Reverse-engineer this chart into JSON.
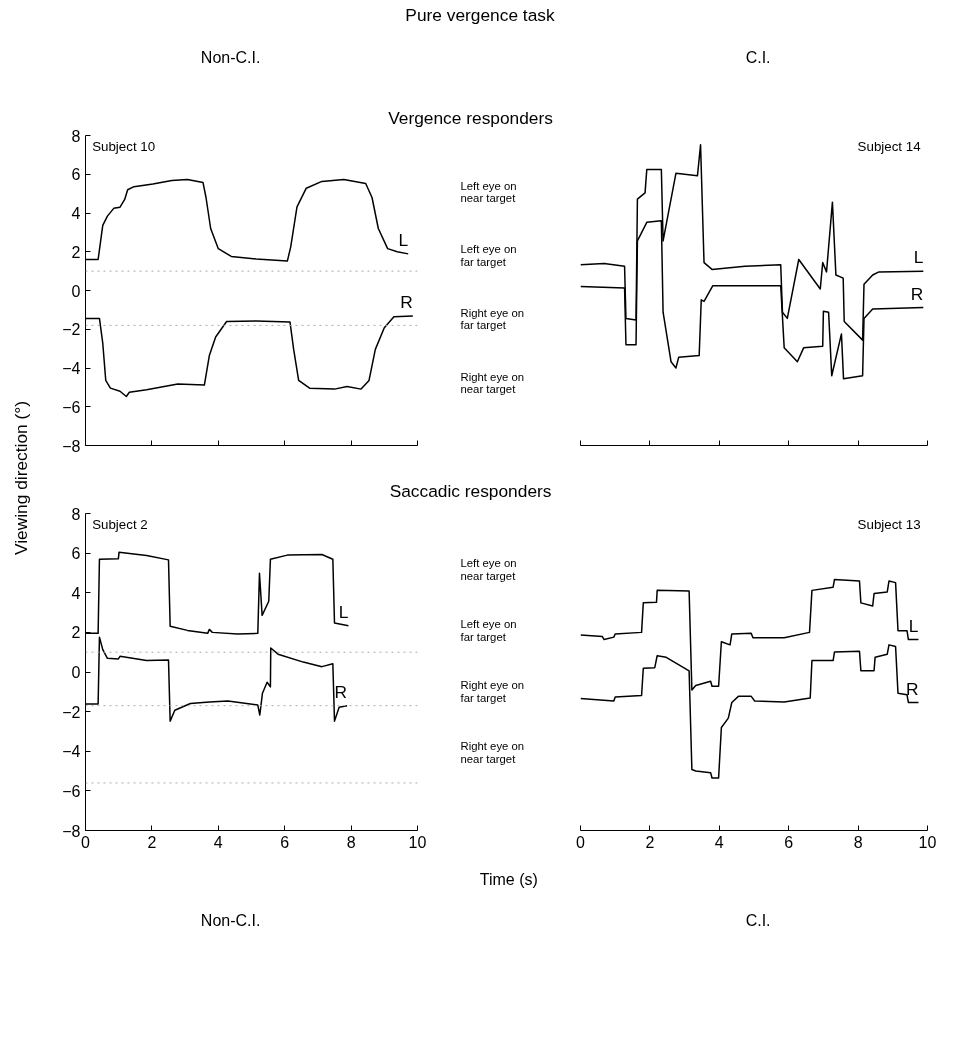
{
  "chart_data": [
    {
      "type": "other",
      "title": "Pure vergence task",
      "ylabel": "Viewing direction (°)",
      "annotations": [
        "Non-C.I.",
        "C.I."
      ]
    },
    {
      "type": "line",
      "title": "Vergence responders",
      "xlim": [
        0,
        10
      ],
      "xticks": [
        0,
        2,
        4,
        6,
        8,
        10
      ],
      "ylim": [
        -8,
        8
      ],
      "yticks": [
        -8,
        -6,
        -4,
        -2,
        0,
        2,
        4,
        6,
        8
      ],
      "tick_labels": "y",
      "grid": false,
      "legend": false,
      "marker": "none",
      "line_style": "solid",
      "annotations": [
        "Subject 10",
        "Left eye on near target",
        "Left eye on far target",
        "Right eye on far target",
        "Right eye on near target"
      ],
      "ref_lines": [
        {
          "axis": "y",
          "value": 1,
          "color": "#aaaaaa",
          "line_style": "dotted"
        },
        {
          "axis": "y",
          "value": -1.8,
          "color": "#aaaaaa",
          "line_style": "dotted"
        }
      ],
      "series": [
        {
          "name": "L",
          "color": "#000000",
          "x": [
            0,
            0.38,
            0.52,
            0.66,
            0.85,
            1.04,
            1.18,
            1.27,
            1.46,
            2.03,
            2.6,
            3.07,
            3.54,
            3.63,
            3.77,
            4.0,
            4.39,
            5.14,
            6.08,
            6.18,
            6.37,
            6.65,
            7.12,
            7.78,
            8.44,
            8.63,
            8.82,
            9.1,
            9.39,
            9.72
          ],
          "values": [
            1.6,
            1.6,
            3.36,
            3.84,
            4.24,
            4.3,
            4.7,
            5.2,
            5.36,
            5.5,
            5.68,
            5.73,
            5.57,
            4.8,
            3.2,
            2.16,
            1.76,
            1.63,
            1.52,
            2.24,
            4.32,
            5.28,
            5.63,
            5.73,
            5.52,
            4.8,
            3.2,
            2.16,
            2.0,
            1.89
          ]
        },
        {
          "name": "R",
          "color": "#000000",
          "x": [
            0,
            0.42,
            0.52,
            0.61,
            0.75,
            1.04,
            1.23,
            1.32,
            1.84,
            2.78,
            3.58,
            3.73,
            3.92,
            4.25,
            5.14,
            6.16,
            6.27,
            6.42,
            6.75,
            7.5,
            7.88,
            8.3,
            8.54,
            8.73,
            9.0,
            9.29,
            9.86
          ],
          "values": [
            -1.44,
            -1.44,
            -2.72,
            -4.64,
            -5.04,
            -5.2,
            -5.47,
            -5.25,
            -5.12,
            -4.83,
            -4.88,
            -3.36,
            -2.4,
            -1.6,
            -1.57,
            -1.63,
            -3.04,
            -4.64,
            -5.04,
            -5.09,
            -4.96,
            -5.09,
            -4.64,
            -3.04,
            -1.92,
            -1.36,
            -1.31
          ]
        }
      ]
    },
    {
      "type": "line",
      "xlim": [
        0,
        10
      ],
      "xticks": [
        0,
        2,
        4,
        6,
        8,
        10
      ],
      "ylim": [
        -8,
        8
      ],
      "tick_labels": false,
      "grid": false,
      "legend": false,
      "marker": "none",
      "line_style": "solid",
      "annotations": [
        "Subject 14"
      ],
      "series": [
        {
          "name": "L",
          "color": "#000000",
          "x": [
            0,
            0.68,
            1.27,
            1.31,
            1.6,
            1.64,
            1.86,
            1.91,
            2.33,
            2.38,
            2.75,
            3.37,
            3.46,
            3.56,
            3.79,
            4.74,
            5.77,
            5.82,
            5.96,
            6.29,
            6.91,
            6.98,
            7.09,
            7.26,
            7.36,
            7.57,
            7.6,
            8.13,
            8.17,
            8.42,
            8.6,
            9.88
          ],
          "values": [
            1.33,
            1.39,
            1.25,
            -1.44,
            -1.52,
            4.72,
            5.04,
            6.24,
            6.24,
            2.56,
            6.05,
            5.92,
            7.52,
            1.44,
            1.09,
            1.25,
            1.33,
            -1.12,
            -1.44,
            1.6,
            0.08,
            1.44,
            0.96,
            4.56,
            0.8,
            0.64,
            -1.6,
            -2.56,
            0.32,
            0.8,
            0.96,
            0.99
          ]
        },
        {
          "name": "R",
          "color": "#000000",
          "x": [
            0,
            1.27,
            1.31,
            1.6,
            1.64,
            1.91,
            2.33,
            2.38,
            2.61,
            2.75,
            2.83,
            3.42,
            3.48,
            3.56,
            3.81,
            5.77,
            5.87,
            6.25,
            6.43,
            6.98,
            7.0,
            7.15,
            7.24,
            7.52,
            7.58,
            8.13,
            8.17,
            8.42,
            9.88
          ],
          "values": [
            0.21,
            0.13,
            -2.8,
            -2.8,
            2.56,
            3.52,
            3.6,
            -1.12,
            -3.68,
            -4.0,
            -3.44,
            -3.36,
            -0.48,
            -0.56,
            0.24,
            0.24,
            -2.96,
            -3.68,
            -2.96,
            -2.88,
            -1.07,
            -1.12,
            -4.4,
            -2.24,
            -4.56,
            -4.4,
            -1.44,
            -0.96,
            -0.88
          ]
        }
      ]
    },
    {
      "type": "line",
      "title": "Saccadic responders",
      "xlim": [
        0,
        10
      ],
      "xticks": [
        0,
        2,
        4,
        6,
        8,
        10
      ],
      "ylim": [
        -8,
        8
      ],
      "yticks": [
        -8,
        -6,
        -4,
        -2,
        0,
        2,
        4,
        6,
        8
      ],
      "grid": false,
      "legend": false,
      "marker": "none",
      "line_style": "solid",
      "annotations": [
        "Subject 2",
        "Left eye on near target",
        "Left eye on far target",
        "Right eye on far target",
        "Right eye on near target"
      ],
      "ref_lines": [
        {
          "axis": "y",
          "value": 1,
          "color": "#aaaaaa",
          "line_style": "dotted"
        },
        {
          "axis": "y",
          "value": -1.7,
          "color": "#aaaaaa",
          "line_style": "dotted"
        },
        {
          "axis": "y",
          "value": -5.6,
          "color": "#aaaaaa",
          "line_style": "dotted"
        }
      ],
      "series": [
        {
          "name": "L",
          "color": "#000000",
          "x": [
            0,
            0.38,
            0.42,
            0.99,
            1.01,
            1.84,
            2.5,
            2.55,
            3.07,
            3.68,
            3.73,
            3.82,
            4.58,
            5.19,
            5.24,
            5.32,
            5.52,
            5.57,
            6.08,
            7.12,
            7.45,
            7.5,
            7.92
          ],
          "values": [
            1.95,
            1.95,
            5.69,
            5.72,
            6.04,
            5.88,
            5.66,
            2.31,
            2.1,
            1.95,
            2.15,
            2.0,
            1.92,
            1.95,
            4.98,
            2.86,
            3.57,
            5.69,
            5.9,
            5.93,
            5.69,
            2.47,
            2.34
          ]
        },
        {
          "name": "R",
          "color": "#000000",
          "x": [
            0,
            0.38,
            0.42,
            0.52,
            0.66,
            0.99,
            1.04,
            1.84,
            2.5,
            2.55,
            2.69,
            3.16,
            3.73,
            4.29,
            5.19,
            5.25,
            5.33,
            5.47,
            5.57,
            5.58,
            5.8,
            6.56,
            7.12,
            7.45,
            7.5,
            7.64,
            7.88
          ],
          "values": [
            -1.62,
            -1.62,
            1.76,
            1.13,
            0.69,
            0.66,
            0.79,
            0.58,
            0.61,
            -2.48,
            -1.93,
            -1.59,
            -1.51,
            -1.46,
            -1.67,
            -2.17,
            -1.07,
            -0.52,
            -0.75,
            1.21,
            0.9,
            0.5,
            0.27,
            0.42,
            -2.48,
            -1.78,
            -1.7
          ]
        }
      ]
    },
    {
      "type": "line",
      "xlim": [
        0,
        10
      ],
      "xticks": [
        0,
        2,
        4,
        6,
        8,
        10
      ],
      "ylim": [
        -8,
        8
      ],
      "tick_labels": "x",
      "grid": false,
      "legend": false,
      "marker": "none",
      "line_style": "solid",
      "annotations": [
        "Subject 13"
      ],
      "series": [
        {
          "name": "L",
          "color": "#000000",
          "x": [
            0,
            0.63,
            0.68,
            0.96,
            1.0,
            1.76,
            1.81,
            2.19,
            2.21,
            3.13,
            3.21,
            3.32,
            3.75,
            3.79,
            3.98,
            4.06,
            4.31,
            4.36,
            4.92,
            4.97,
            5.87,
            6.6,
            6.67,
            7.28,
            7.32,
            8.04,
            8.08,
            8.42,
            8.46,
            8.84,
            8.89,
            9.08,
            9.15,
            9.41,
            9.45,
            9.74
          ],
          "values": [
            1.87,
            1.79,
            1.64,
            1.76,
            1.92,
            2.0,
            3.49,
            3.52,
            4.12,
            4.09,
            -0.91,
            -0.68,
            -0.47,
            -0.72,
            -0.72,
            1.53,
            1.37,
            1.92,
            1.95,
            1.73,
            1.73,
            2.0,
            4.12,
            4.28,
            4.67,
            4.59,
            3.49,
            3.33,
            3.96,
            4.04,
            4.59,
            4.51,
            2.08,
            2.08,
            1.64,
            1.64
          ]
        },
        {
          "name": "R",
          "color": "#000000",
          "x": [
            0,
            0.96,
            1.0,
            1.76,
            1.81,
            2.14,
            2.21,
            2.47,
            3.13,
            3.21,
            3.32,
            3.75,
            3.79,
            3.98,
            4.06,
            4.26,
            4.36,
            4.55,
            4.92,
            5.02,
            5.87,
            6.62,
            6.67,
            7.28,
            7.32,
            8.04,
            8.08,
            8.46,
            8.49,
            8.84,
            8.89,
            9.08,
            9.15,
            9.41,
            9.45,
            9.74
          ],
          "values": [
            -1.34,
            -1.46,
            -1.26,
            -1.19,
            0.19,
            0.22,
            0.82,
            0.74,
            0.06,
            -4.92,
            -5.0,
            -5.08,
            -5.35,
            -5.35,
            -2.8,
            -2.33,
            -1.54,
            -1.23,
            -1.23,
            -1.46,
            -1.51,
            -1.31,
            0.58,
            0.58,
            1.01,
            1.05,
            0.06,
            0.06,
            0.74,
            0.9,
            1.37,
            1.29,
            -1.07,
            -1.15,
            -1.54,
            -1.54
          ]
        }
      ]
    },
    {
      "type": "other",
      "xlabel": "Time (s)",
      "annotations": [
        "Non-C.I.",
        "C.I."
      ]
    }
  ]
}
